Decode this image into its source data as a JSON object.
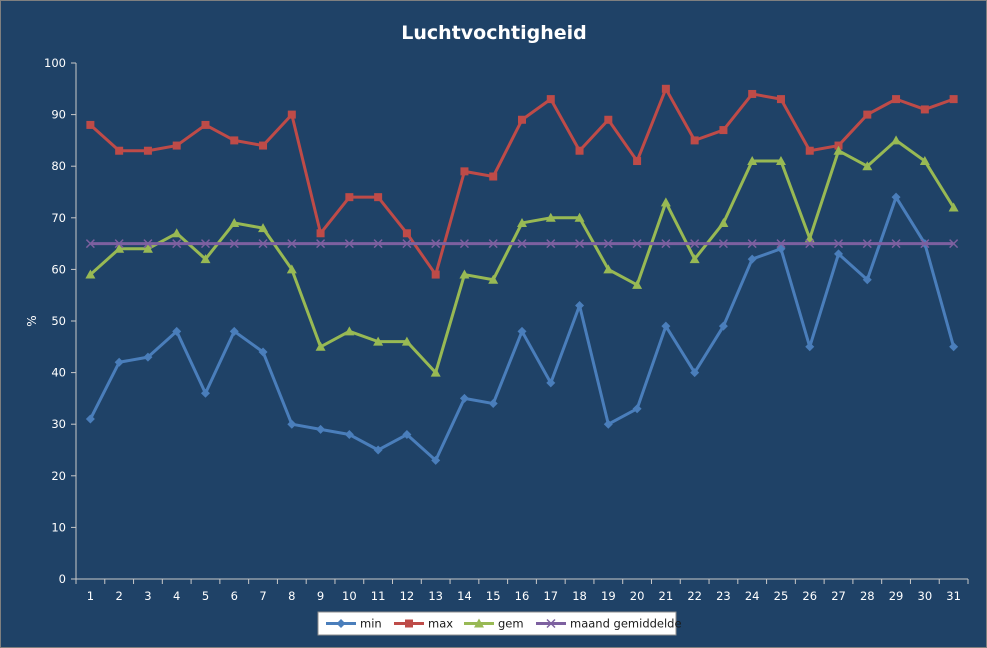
{
  "chart_data": {
    "type": "line",
    "title": "Luchtvochtigheid",
    "ylabel": "%",
    "xlabel": "",
    "ylim": [
      0,
      100
    ],
    "yticks": [
      0,
      10,
      20,
      30,
      40,
      50,
      60,
      70,
      80,
      90,
      100
    ],
    "categories": [
      "1",
      "2",
      "3",
      "4",
      "5",
      "6",
      "7",
      "8",
      "9",
      "10",
      "11",
      "12",
      "13",
      "14",
      "15",
      "16",
      "17",
      "18",
      "19",
      "20",
      "21",
      "22",
      "23",
      "24",
      "25",
      "26",
      "27",
      "28",
      "29",
      "30",
      "31"
    ],
    "grid": false,
    "legend": "bottom",
    "series": [
      {
        "name": "min",
        "color": "#4a7ebb",
        "marker": "diamond",
        "values": [
          31,
          42,
          43,
          48,
          36,
          48,
          44,
          30,
          29,
          28,
          25,
          28,
          23,
          35,
          34,
          48,
          38,
          53,
          30,
          33,
          49,
          40,
          49,
          62,
          64,
          45,
          63,
          58,
          74,
          65,
          45
        ]
      },
      {
        "name": "max",
        "color": "#be4b48",
        "marker": "square",
        "values": [
          88,
          83,
          83,
          84,
          88,
          85,
          84,
          90,
          67,
          74,
          74,
          67,
          59,
          79,
          78,
          89,
          93,
          83,
          89,
          81,
          95,
          85,
          87,
          94,
          93,
          83,
          84,
          90,
          93,
          91,
          93
        ]
      },
      {
        "name": "gem",
        "color": "#98b954",
        "marker": "triangle",
        "values": [
          59,
          64,
          64,
          67,
          62,
          69,
          68,
          60,
          45,
          48,
          46,
          46,
          40,
          59,
          58,
          69,
          70,
          70,
          60,
          57,
          73,
          62,
          69,
          81,
          81,
          66,
          83,
          80,
          85,
          81,
          72
        ]
      },
      {
        "name": "maand gemiddelde",
        "color": "#7d60a0",
        "marker": "x",
        "values": [
          65,
          65,
          65,
          65,
          65,
          65,
          65,
          65,
          65,
          65,
          65,
          65,
          65,
          65,
          65,
          65,
          65,
          65,
          65,
          65,
          65,
          65,
          65,
          65,
          65,
          65,
          65,
          65,
          65,
          65,
          65
        ]
      }
    ]
  }
}
